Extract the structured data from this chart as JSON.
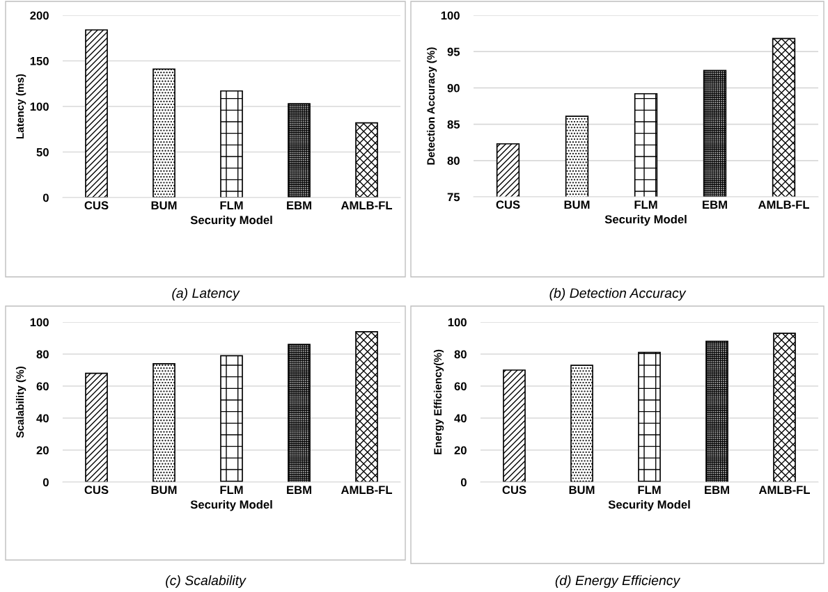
{
  "chart_data": [
    {
      "type": "bar",
      "categories": [
        "CUS",
        "BUM",
        "FLM",
        "EBM",
        "AMLB-FL"
      ],
      "values": [
        184,
        141,
        117,
        103,
        82
      ],
      "color": "#000000",
      "xlabel": "Security Model",
      "ylabel": "Latency (ms)",
      "ylim": [
        0,
        200
      ],
      "yticks": [
        0,
        50,
        100,
        150,
        200
      ],
      "grid": "y",
      "annotations": [
        "(a) Latency"
      ]
    },
    {
      "type": "bar",
      "categories": [
        "CUS",
        "BUM",
        "FLM",
        "EBM",
        "AMLB-FL"
      ],
      "values": [
        82.3,
        86.1,
        89.2,
        92.4,
        96.8
      ],
      "color": "#000000",
      "xlabel": "Security Model",
      "ylabel": "Detection Accuracy (%)",
      "ylim": [
        75,
        100
      ],
      "yticks": [
        75,
        80,
        85,
        90,
        95,
        100
      ],
      "grid": "y",
      "annotations": [
        "(b) Detection Accuracy"
      ]
    },
    {
      "type": "bar",
      "categories": [
        "CUS",
        "BUM",
        "FLM",
        "EBM",
        "AMLB-FL"
      ],
      "values": [
        68,
        74,
        79,
        86,
        94
      ],
      "color": "#000000",
      "xlabel": "Security Model",
      "ylabel": "Scalability (%)",
      "ylim": [
        0,
        100
      ],
      "yticks": [
        0,
        20,
        40,
        60,
        80,
        100
      ],
      "grid": "y",
      "annotations": [
        "(c) Scalability"
      ]
    },
    {
      "type": "bar",
      "categories": [
        "CUS",
        "BUM",
        "FLM",
        "EBM",
        "AMLB-FL"
      ],
      "values": [
        70,
        73,
        81,
        88,
        93
      ],
      "color": "#000000",
      "xlabel": "Security Model",
      "ylabel": "Energy Efficiency(%)",
      "ylim": [
        0,
        100
      ],
      "yticks": [
        0,
        20,
        40,
        60,
        80,
        100
      ],
      "grid": "y",
      "annotations": [
        "(d) Energy Efficiency"
      ]
    }
  ]
}
